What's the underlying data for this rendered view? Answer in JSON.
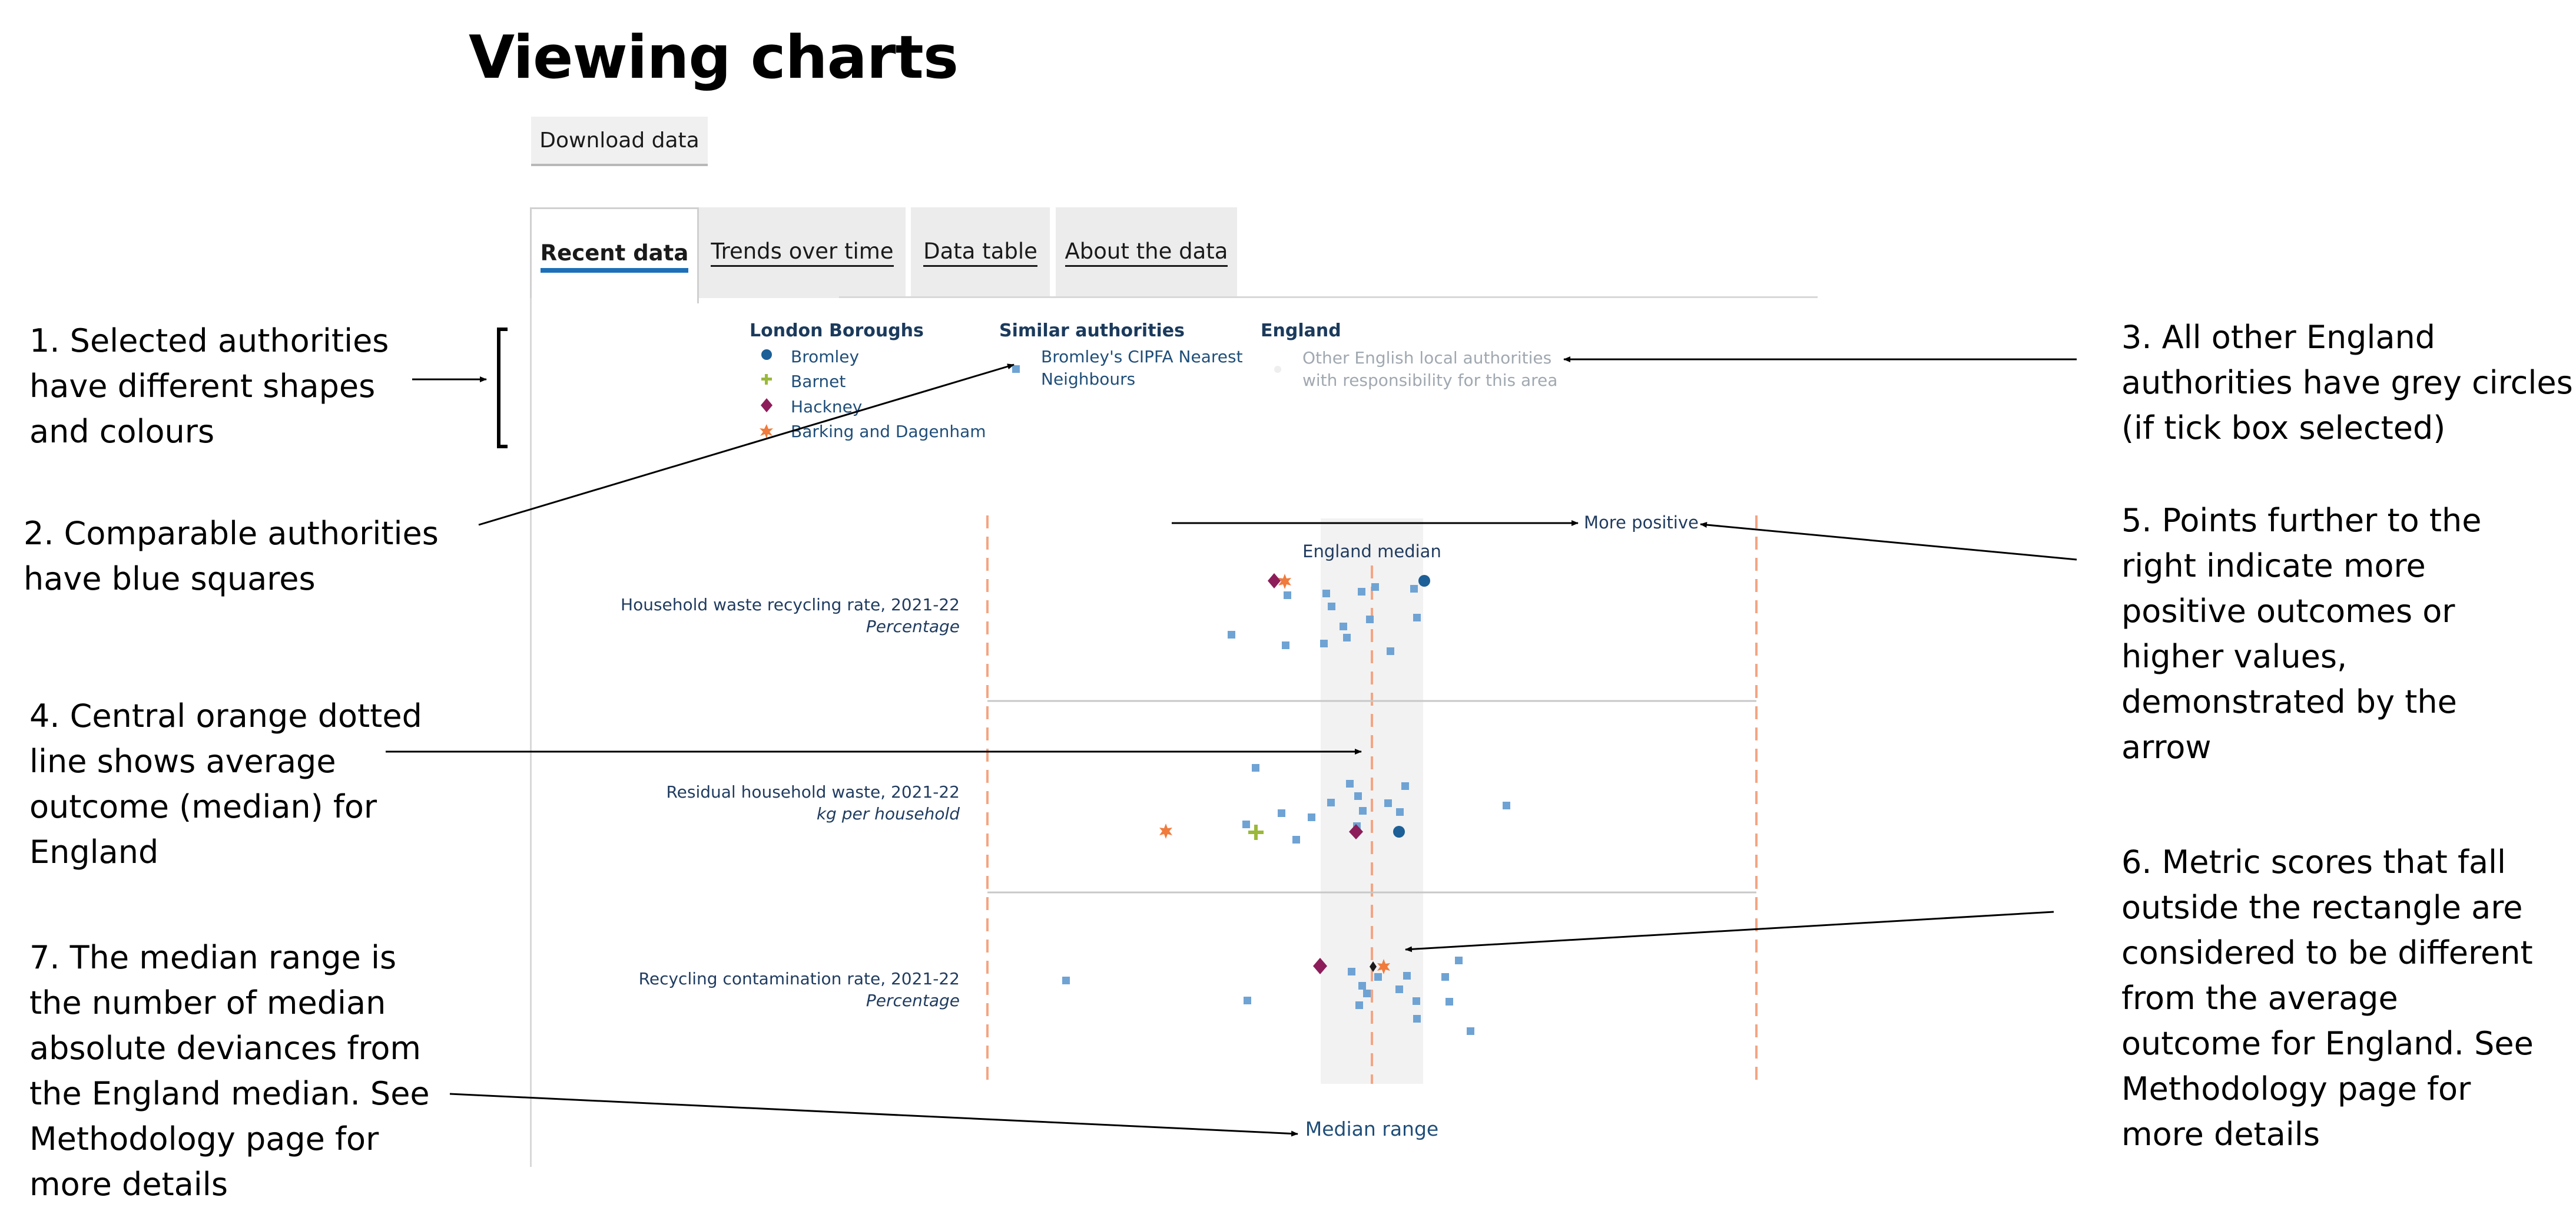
{
  "page": {
    "title": "Viewing charts",
    "download_label": "Download data"
  },
  "tabs": [
    {
      "label": "Recent data",
      "active": true
    },
    {
      "label": "Trends over time",
      "active": false
    },
    {
      "label": "Data table",
      "active": false
    },
    {
      "label": "About the data",
      "active": false
    }
  ],
  "legend": {
    "group1_title": "London Boroughs",
    "group1_items": [
      {
        "label": "Bromley",
        "marker": "circle",
        "color": "#1d5f97"
      },
      {
        "label": "Barnet",
        "marker": "plus",
        "color": "#9ab93b"
      },
      {
        "label": "Hackney",
        "marker": "diamond",
        "color": "#8c1d5a"
      },
      {
        "label": "Barking and Dagenham",
        "marker": "star",
        "color": "#f07b3c"
      }
    ],
    "group2_title": "Similar authorities",
    "group2_line1": "Bromley's CIPFA Nearest",
    "group2_line2": "Neighbours",
    "group2_color": "#6fa3d4",
    "group3_title": "England",
    "group3_line1": "Other English local authorities",
    "group3_line2": "with responsibility for this area"
  },
  "chart": {
    "more_positive_label": "More positive",
    "median_label": "England median",
    "median_range_label": "Median range",
    "median_line_color": "#f4a582",
    "band_color": "#f2f2f2"
  },
  "chart_data": {
    "type": "scatter",
    "metrics": [
      {
        "name": "Household waste recycling rate, 2021-22",
        "unit": "Percentage"
      },
      {
        "name": "Residual household waste, 2021-22",
        "unit": "kg per household"
      },
      {
        "name": "Recycling contamination rate, 2021-22",
        "unit": "Percentage"
      }
    ]
  },
  "annotations": {
    "a1": [
      "1. Selected authorities",
      "have different shapes",
      "and colours"
    ],
    "a2": [
      "2. Comparable authorities",
      "have blue squares"
    ],
    "a3": [
      "3. All other England",
      "authorities have grey circles",
      "(if tick box selected)"
    ],
    "a4": [
      "4. Central orange dotted",
      "line shows average",
      "outcome (median) for",
      "England"
    ],
    "a5": [
      "5. Points further to the",
      "right indicate more",
      "positive outcomes or",
      "higher values,",
      "demonstrated by the",
      "arrow"
    ],
    "a6": [
      "6. Metric scores that fall",
      "outside the rectangle are",
      "considered to be different",
      "from the average",
      "outcome for England. See",
      "Methodology page for",
      "more details"
    ],
    "a7": [
      "7. The median range is",
      "the number of median",
      "absolute deviances from",
      "the England median. See",
      "Methodology page for",
      "more details"
    ]
  }
}
